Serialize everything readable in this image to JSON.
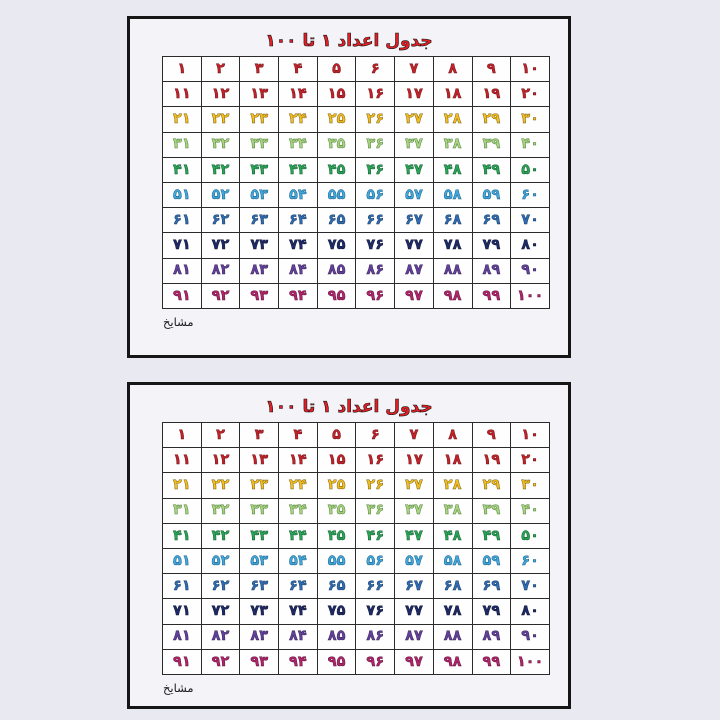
{
  "page": {
    "background": "#e9e9f1"
  },
  "panel": {
    "title": "جدول اعداد ۱ تا ۱۰۰",
    "title_color": "#e41e25",
    "title_outline": "#151515",
    "footer": "مشایخ",
    "border_color": "#161616",
    "background": "#f3f3f8"
  },
  "number_table": {
    "columns": 10,
    "rows": [
      {
        "range": "1-10",
        "color": "#c2222a",
        "outline": "#6d1013",
        "values": [
          "۱",
          "۲",
          "۳",
          "۴",
          "۵",
          "۶",
          "۷",
          "۸",
          "۹",
          "۱۰"
        ]
      },
      {
        "range": "11-20",
        "color": "#c2222a",
        "outline": "#6d1013",
        "values": [
          "۱۱",
          "۱۲",
          "۱۳",
          "۱۴",
          "۱۵",
          "۱۶",
          "۱۷",
          "۱۸",
          "۱۹",
          "۲۰"
        ]
      },
      {
        "range": "21-30",
        "color": "#f2bd1e",
        "outline": "#7c6014",
        "values": [
          "۲۱",
          "۲۲",
          "۲۳",
          "۲۴",
          "۲۵",
          "۲۶",
          "۲۷",
          "۲۸",
          "۲۹",
          "۳۰"
        ]
      },
      {
        "range": "31-40",
        "color": "#a9d283",
        "outline": "#4d8034",
        "values": [
          "۳۱",
          "۳۲",
          "۳۳",
          "۳۴",
          "۳۵",
          "۳۶",
          "۳۷",
          "۳۸",
          "۳۹",
          "۴۰"
        ]
      },
      {
        "range": "41-50",
        "color": "#2aa357",
        "outline": "#0f5b2e",
        "values": [
          "۴۱",
          "۴۲",
          "۴۳",
          "۴۴",
          "۴۵",
          "۴۶",
          "۴۷",
          "۴۸",
          "۴۹",
          "۵۰"
        ]
      },
      {
        "range": "51-60",
        "color": "#41a8dc",
        "outline": "#185a85",
        "values": [
          "۵۱",
          "۵۲",
          "۵۳",
          "۵۴",
          "۵۵",
          "۵۶",
          "۵۷",
          "۵۸",
          "۵۹",
          "۶۰"
        ]
      },
      {
        "range": "61-70",
        "color": "#2e6db3",
        "outline": "#16365e",
        "values": [
          "۶۱",
          "۶۲",
          "۶۳",
          "۶۴",
          "۶۵",
          "۶۶",
          "۶۷",
          "۶۸",
          "۶۹",
          "۷۰"
        ]
      },
      {
        "range": "71-80",
        "color": "#1e2a66",
        "outline": "#0a0f30",
        "values": [
          "۷۱",
          "۷۲",
          "۷۳",
          "۷۴",
          "۷۵",
          "۷۶",
          "۷۷",
          "۷۸",
          "۷۹",
          "۸۰"
        ]
      },
      {
        "range": "81-90",
        "color": "#63409c",
        "outline": "#301f50",
        "values": [
          "۸۱",
          "۸۲",
          "۸۳",
          "۸۴",
          "۸۵",
          "۸۶",
          "۸۷",
          "۸۸",
          "۸۹",
          "۹۰"
        ]
      },
      {
        "range": "91-100",
        "color": "#b2246b",
        "outline": "#581036",
        "values": [
          "۹۱",
          "۹۲",
          "۹۳",
          "۹۴",
          "۹۵",
          "۹۶",
          "۹۷",
          "۹۸",
          "۹۹",
          "۱۰۰"
        ]
      }
    ]
  }
}
